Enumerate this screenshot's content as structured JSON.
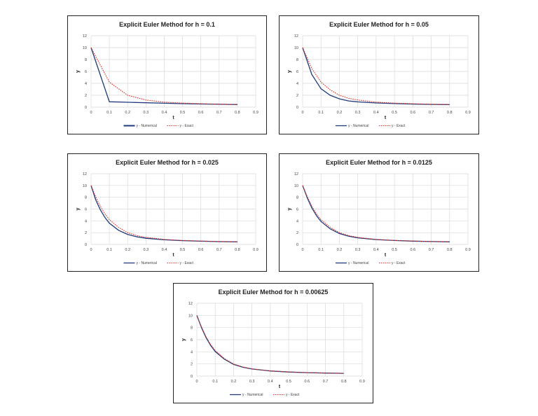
{
  "chart_data": [
    {
      "type": "line",
      "title": "Explicit Euler Method for h = 0.1",
      "xlabel": "t",
      "ylabel": "y",
      "xlim": [
        0,
        0.9
      ],
      "ylim": [
        0,
        12
      ],
      "xticks": [
        "0",
        "0.1",
        "0.2",
        "0.3",
        "0.4",
        "0.5",
        "0.6",
        "0.7",
        "0.8",
        "0.9"
      ],
      "yticks": [
        "0",
        "2",
        "4",
        "6",
        "8",
        "10",
        "12"
      ],
      "grid": true,
      "legend": "bottom",
      "series": [
        {
          "name": "y - Numerical",
          "color": "#1f3a7a",
          "style": "solid",
          "x": [
            0,
            0.1,
            0.2,
            0.3,
            0.4,
            0.5,
            0.6,
            0.7,
            0.8
          ],
          "y": [
            10,
            0.9,
            0.82,
            0.74,
            0.66,
            0.59,
            0.53,
            0.48,
            0.43
          ]
        },
        {
          "name": "y - Exact",
          "color": "#e0302a",
          "style": "dotted",
          "x": [
            0,
            0.1,
            0.2,
            0.3,
            0.4,
            0.5,
            0.6,
            0.7,
            0.8
          ],
          "y": [
            10,
            4.2,
            2.0,
            1.2,
            0.85,
            0.68,
            0.58,
            0.5,
            0.45
          ]
        }
      ]
    },
    {
      "type": "line",
      "title": "Explicit Euler Method for h = 0.05",
      "xlabel": "t",
      "ylabel": "y",
      "xlim": [
        0,
        0.9
      ],
      "ylim": [
        0,
        12
      ],
      "xticks": [
        "0",
        "0.1",
        "0.2",
        "0.3",
        "0.4",
        "0.5",
        "0.6",
        "0.7",
        "0.8",
        "0.9"
      ],
      "yticks": [
        "0",
        "2",
        "4",
        "6",
        "8",
        "10",
        "12"
      ],
      "grid": true,
      "legend": "bottom",
      "series": [
        {
          "name": "y - Numerical",
          "color": "#1f3a7a",
          "style": "solid",
          "x": [
            0,
            0.05,
            0.1,
            0.15,
            0.2,
            0.25,
            0.3,
            0.4,
            0.5,
            0.6,
            0.7,
            0.8
          ],
          "y": [
            10,
            5.5,
            3.1,
            2.0,
            1.4,
            1.05,
            0.88,
            0.7,
            0.6,
            0.52,
            0.46,
            0.42
          ]
        },
        {
          "name": "y - Exact",
          "color": "#e0302a",
          "style": "dotted",
          "x": [
            0,
            0.05,
            0.1,
            0.15,
            0.2,
            0.25,
            0.3,
            0.4,
            0.5,
            0.6,
            0.7,
            0.8
          ],
          "y": [
            10,
            6.5,
            4.2,
            2.9,
            2.0,
            1.5,
            1.2,
            0.85,
            0.68,
            0.58,
            0.5,
            0.45
          ]
        }
      ]
    },
    {
      "type": "line",
      "title": "Explicit Euler Method for h = 0.025",
      "xlabel": "t",
      "ylabel": "y",
      "xlim": [
        0,
        0.9
      ],
      "ylim": [
        0,
        12
      ],
      "xticks": [
        "0",
        "0.1",
        "0.2",
        "0.3",
        "0.4",
        "0.5",
        "0.6",
        "0.7",
        "0.8",
        "0.9"
      ],
      "yticks": [
        "0",
        "2",
        "4",
        "6",
        "8",
        "10",
        "12"
      ],
      "grid": true,
      "legend": "bottom",
      "series": [
        {
          "name": "y - Numerical",
          "color": "#1f3a7a",
          "style": "solid",
          "x": [
            0,
            0.025,
            0.05,
            0.075,
            0.1,
            0.15,
            0.2,
            0.25,
            0.3,
            0.4,
            0.5,
            0.6,
            0.7,
            0.8
          ],
          "y": [
            10,
            7.6,
            5.9,
            4.6,
            3.6,
            2.4,
            1.7,
            1.3,
            1.05,
            0.78,
            0.64,
            0.55,
            0.48,
            0.44
          ]
        },
        {
          "name": "y - Exact",
          "color": "#e0302a",
          "style": "dotted",
          "x": [
            0,
            0.025,
            0.05,
            0.075,
            0.1,
            0.15,
            0.2,
            0.25,
            0.3,
            0.4,
            0.5,
            0.6,
            0.7,
            0.8
          ],
          "y": [
            10,
            8.1,
            6.5,
            5.2,
            4.2,
            2.9,
            2.0,
            1.5,
            1.2,
            0.85,
            0.68,
            0.58,
            0.5,
            0.45
          ]
        }
      ]
    },
    {
      "type": "line",
      "title": "Explicit Euler Method for h = 0.0125",
      "xlabel": "t",
      "ylabel": "y",
      "xlim": [
        0,
        0.9
      ],
      "ylim": [
        0,
        12
      ],
      "xticks": [
        "0",
        "0.1",
        "0.2",
        "0.3",
        "0.4",
        "0.5",
        "0.6",
        "0.7",
        "0.8",
        "0.9"
      ],
      "yticks": [
        "0",
        "2",
        "4",
        "6",
        "8",
        "10",
        "12"
      ],
      "grid": true,
      "legend": "bottom",
      "series": [
        {
          "name": "y - Numerical",
          "color": "#1f3a7a",
          "style": "solid",
          "x": [
            0,
            0.025,
            0.05,
            0.075,
            0.1,
            0.15,
            0.2,
            0.25,
            0.3,
            0.4,
            0.5,
            0.6,
            0.7,
            0.8
          ],
          "y": [
            10,
            7.9,
            6.2,
            4.9,
            3.9,
            2.65,
            1.85,
            1.4,
            1.12,
            0.82,
            0.66,
            0.56,
            0.49,
            0.44
          ]
        },
        {
          "name": "y - Exact",
          "color": "#e0302a",
          "style": "dotted",
          "x": [
            0,
            0.025,
            0.05,
            0.075,
            0.1,
            0.15,
            0.2,
            0.25,
            0.3,
            0.4,
            0.5,
            0.6,
            0.7,
            0.8
          ],
          "y": [
            10,
            8.1,
            6.5,
            5.2,
            4.2,
            2.9,
            2.0,
            1.5,
            1.2,
            0.85,
            0.68,
            0.58,
            0.5,
            0.45
          ]
        }
      ]
    },
    {
      "type": "line",
      "title": "Explicit Euler Method for h = 0.00625",
      "xlabel": "t",
      "ylabel": "y",
      "xlim": [
        0,
        0.9
      ],
      "ylim": [
        0,
        12
      ],
      "xticks": [
        "0",
        "0.1",
        "0.2",
        "0.3",
        "0.4",
        "0.5",
        "0.6",
        "0.7",
        "0.8",
        "0.9"
      ],
      "yticks": [
        "0",
        "2",
        "4",
        "6",
        "8",
        "10",
        "12"
      ],
      "grid": true,
      "legend": "bottom",
      "series": [
        {
          "name": "y - Numerical",
          "color": "#1f3a7a",
          "style": "solid",
          "x": [
            0,
            0.025,
            0.05,
            0.075,
            0.1,
            0.15,
            0.2,
            0.25,
            0.3,
            0.4,
            0.5,
            0.6,
            0.7,
            0.8
          ],
          "y": [
            10,
            8.0,
            6.35,
            5.05,
            4.05,
            2.78,
            1.93,
            1.45,
            1.16,
            0.84,
            0.67,
            0.57,
            0.5,
            0.45
          ]
        },
        {
          "name": "y - Exact",
          "color": "#e0302a",
          "style": "dotted",
          "x": [
            0,
            0.025,
            0.05,
            0.075,
            0.1,
            0.15,
            0.2,
            0.25,
            0.3,
            0.4,
            0.5,
            0.6,
            0.7,
            0.8
          ],
          "y": [
            10,
            8.1,
            6.5,
            5.2,
            4.2,
            2.9,
            2.0,
            1.5,
            1.2,
            0.85,
            0.68,
            0.58,
            0.5,
            0.45
          ]
        }
      ]
    }
  ]
}
